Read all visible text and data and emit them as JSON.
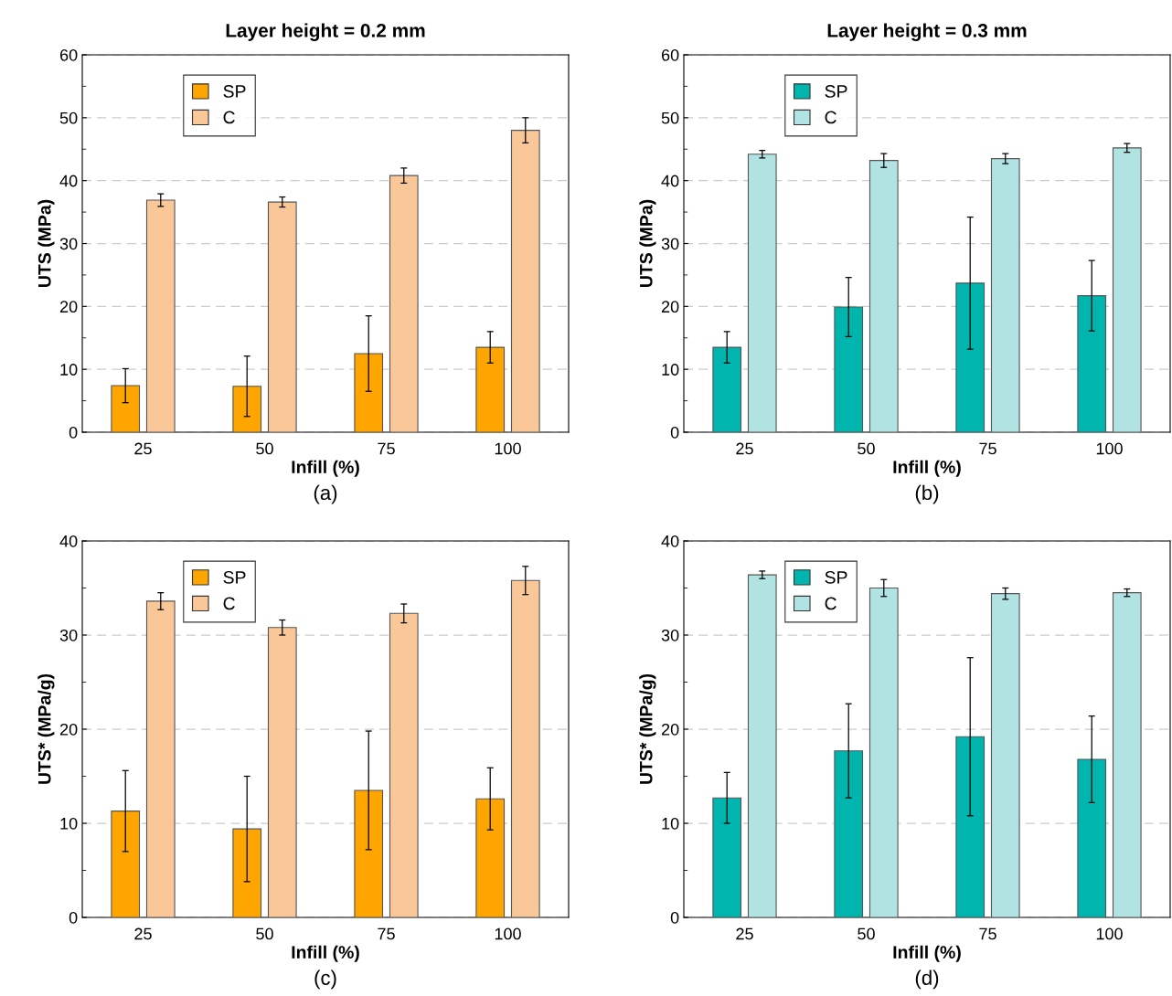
{
  "chart_data": [
    {
      "type": "bar",
      "title": "Layer height = 0.2 mm",
      "xlabel": "Infill (%)",
      "ylabel": "UTS (MPa)",
      "categories": [
        "25",
        "50",
        "75",
        "100"
      ],
      "ylim": [
        0,
        60
      ],
      "yticks": [
        0,
        10,
        20,
        30,
        40,
        50,
        60
      ],
      "grid": "y",
      "legend": "top left",
      "annotations": [
        "(a)"
      ],
      "series": [
        {
          "name": "SP",
          "color": "#ffa500",
          "values": [
            7.4,
            7.3,
            12.5,
            13.5
          ],
          "errors": [
            2.7,
            4.8,
            6.0,
            2.5
          ]
        },
        {
          "name": "C",
          "color": "#fac898",
          "values": [
            36.9,
            36.6,
            40.8,
            48.0
          ],
          "errors": [
            1.0,
            0.8,
            1.2,
            2.0
          ]
        }
      ]
    },
    {
      "type": "bar",
      "title": "Layer height = 0.3 mm",
      "xlabel": "Infill (%)",
      "ylabel": "UTS (MPa)",
      "categories": [
        "25",
        "50",
        "75",
        "100"
      ],
      "ylim": [
        0,
        60
      ],
      "yticks": [
        0,
        10,
        20,
        30,
        40,
        50,
        60
      ],
      "grid": "y",
      "legend": "top left",
      "annotations": [
        "(b)"
      ],
      "series": [
        {
          "name": "SP",
          "color": "#00b5ad",
          "values": [
            13.5,
            19.9,
            23.7,
            21.7
          ],
          "errors": [
            2.5,
            4.7,
            10.5,
            5.6
          ]
        },
        {
          "name": "C",
          "color": "#b2e3e3",
          "values": [
            44.2,
            43.2,
            43.5,
            45.2
          ],
          "errors": [
            0.6,
            1.1,
            0.8,
            0.7
          ]
        }
      ]
    },
    {
      "type": "bar",
      "xlabel": "Infill (%)",
      "ylabel": "UTS* (MPa/g)",
      "categories": [
        "25",
        "50",
        "75",
        "100"
      ],
      "ylim": [
        0,
        40
      ],
      "yticks": [
        0,
        10,
        20,
        30,
        40
      ],
      "grid": "y",
      "legend": "top left",
      "annotations": [
        "(c)"
      ],
      "series": [
        {
          "name": "SP",
          "color": "#ffa500",
          "values": [
            11.3,
            9.4,
            13.5,
            12.6
          ],
          "errors": [
            4.3,
            5.6,
            6.3,
            3.3
          ]
        },
        {
          "name": "C",
          "color": "#fac898",
          "values": [
            33.6,
            30.8,
            32.3,
            35.8
          ],
          "errors": [
            0.9,
            0.8,
            1.0,
            1.5
          ]
        }
      ]
    },
    {
      "type": "bar",
      "xlabel": "Infill (%)",
      "ylabel": "UTS* (MPa/g)",
      "categories": [
        "25",
        "50",
        "75",
        "100"
      ],
      "ylim": [
        0,
        40
      ],
      "yticks": [
        0,
        10,
        20,
        30,
        40
      ],
      "grid": "y",
      "legend": "top left",
      "annotations": [
        "(d)"
      ],
      "series": [
        {
          "name": "SP",
          "color": "#00b5ad",
          "values": [
            12.7,
            17.7,
            19.2,
            16.8
          ],
          "errors": [
            2.7,
            5.0,
            8.4,
            4.6
          ]
        },
        {
          "name": "C",
          "color": "#b2e3e3",
          "values": [
            36.4,
            35.0,
            34.4,
            34.5
          ],
          "errors": [
            0.4,
            0.9,
            0.6,
            0.4
          ]
        }
      ]
    }
  ]
}
